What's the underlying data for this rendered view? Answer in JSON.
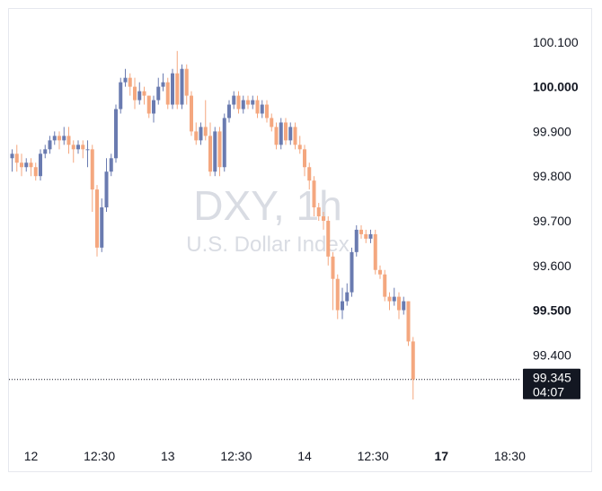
{
  "chart_data": {
    "type": "candlestick",
    "symbol": "DXY",
    "interval": "1h",
    "watermark": {
      "title": "DXY, 1h",
      "subtitle": "U.S. Dollar Index"
    },
    "ylim": [
      99.25,
      100.17
    ],
    "y_ticks": [
      {
        "label": "100.100",
        "value": 100.1,
        "bold": false
      },
      {
        "label": "100.000",
        "value": 100.0,
        "bold": true
      },
      {
        "label": "99.900",
        "value": 99.9,
        "bold": false
      },
      {
        "label": "99.800",
        "value": 99.8,
        "bold": false
      },
      {
        "label": "99.700",
        "value": 99.7,
        "bold": false
      },
      {
        "label": "99.600",
        "value": 99.6,
        "bold": false
      },
      {
        "label": "99.500",
        "value": 99.5,
        "bold": true
      },
      {
        "label": "99.400",
        "value": 99.4,
        "bold": false
      }
    ],
    "x_ticks": [
      {
        "label": "12",
        "bar": 4,
        "bold": false
      },
      {
        "label": "12:30",
        "bar": 18.5,
        "bold": false
      },
      {
        "label": "13",
        "bar": 33,
        "bold": false
      },
      {
        "label": "12:30",
        "bar": 47.5,
        "bold": false
      },
      {
        "label": "14",
        "bar": 62,
        "bold": false
      },
      {
        "label": "12:30",
        "bar": 76.5,
        "bold": false
      },
      {
        "label": "17",
        "bar": 91,
        "bold": true
      },
      {
        "label": "18:30",
        "bar": 105.5,
        "bold": false
      }
    ],
    "last_price": {
      "value": 99.345,
      "label": "99.345",
      "countdown": "04:07"
    },
    "colors": {
      "up": "#6a7bb0",
      "down": "#f4a77f",
      "tag_bg": "#131722",
      "tag_text": "#ffffff",
      "axis_text": "#131722",
      "grid": "none"
    },
    "grid": false,
    "candles": [
      [
        99.84,
        99.85,
        99.86,
        99.81
      ],
      [
        99.85,
        99.83,
        99.87,
        99.81
      ],
      [
        99.83,
        99.82,
        99.85,
        99.8
      ],
      [
        99.82,
        99.83,
        99.84,
        99.81
      ],
      [
        99.83,
        99.82,
        99.84,
        99.8
      ],
      [
        99.82,
        99.8,
        99.83,
        99.79
      ],
      [
        99.8,
        99.85,
        99.86,
        99.79
      ],
      [
        99.85,
        99.86,
        99.87,
        99.84
      ],
      [
        99.86,
        99.88,
        99.89,
        99.85
      ],
      [
        99.88,
        99.89,
        99.9,
        99.87
      ],
      [
        99.89,
        99.88,
        99.9,
        99.86
      ],
      [
        99.88,
        99.89,
        99.91,
        99.87
      ],
      [
        99.89,
        99.87,
        99.91,
        99.85
      ],
      [
        99.87,
        99.86,
        99.88,
        99.83
      ],
      [
        99.86,
        99.87,
        99.88,
        99.85
      ],
      [
        99.87,
        99.86,
        99.88,
        99.84
      ],
      [
        99.86,
        99.86,
        99.88,
        99.82
      ],
      [
        99.86,
        99.77,
        99.87,
        99.72
      ],
      [
        99.77,
        99.64,
        99.78,
        99.62
      ],
      [
        99.64,
        99.73,
        99.75,
        99.63
      ],
      [
        99.73,
        99.81,
        99.84,
        99.72
      ],
      [
        99.81,
        99.84,
        99.85,
        99.8
      ],
      [
        99.84,
        99.95,
        99.96,
        99.83
      ],
      [
        99.95,
        100.01,
        100.02,
        99.94
      ],
      [
        100.01,
        100.02,
        100.04,
        100.0
      ],
      [
        100.02,
        100.0,
        100.03,
        99.98
      ],
      [
        100.0,
        99.97,
        100.02,
        99.95
      ],
      [
        99.97,
        99.99,
        100.01,
        99.96
      ],
      [
        99.99,
        99.98,
        100.0,
        99.96
      ],
      [
        99.98,
        99.94,
        99.98,
        99.93
      ],
      [
        99.94,
        99.97,
        99.98,
        99.92
      ],
      [
        99.97,
        100.0,
        100.02,
        99.96
      ],
      [
        100.0,
        100.01,
        100.03,
        99.99
      ],
      [
        100.01,
        99.96,
        100.02,
        99.95
      ],
      [
        99.96,
        100.03,
        100.04,
        99.95
      ],
      [
        100.03,
        99.96,
        100.08,
        99.95
      ],
      [
        99.96,
        100.04,
        100.05,
        99.95
      ],
      [
        100.04,
        99.98,
        100.05,
        99.96
      ],
      [
        99.98,
        99.9,
        99.99,
        99.89
      ],
      [
        99.9,
        99.88,
        99.92,
        99.87
      ],
      [
        99.88,
        99.91,
        99.92,
        99.87
      ],
      [
        99.91,
        99.89,
        99.97,
        99.88
      ],
      [
        99.89,
        99.81,
        99.92,
        99.8
      ],
      [
        99.81,
        99.9,
        99.91,
        99.8
      ],
      [
        99.9,
        99.82,
        99.91,
        99.8
      ],
      [
        99.82,
        99.93,
        99.94,
        99.81
      ],
      [
        99.93,
        99.96,
        99.97,
        99.92
      ],
      [
        99.96,
        99.98,
        99.99,
        99.95
      ],
      [
        99.98,
        99.95,
        99.99,
        99.94
      ],
      [
        99.95,
        99.97,
        99.98,
        99.94
      ],
      [
        99.97,
        99.96,
        99.98,
        99.95
      ],
      [
        99.96,
        99.97,
        99.98,
        99.95
      ],
      [
        99.97,
        99.94,
        99.98,
        99.93
      ],
      [
        99.94,
        99.96,
        99.97,
        99.93
      ],
      [
        99.96,
        99.93,
        99.97,
        99.92
      ],
      [
        99.93,
        99.91,
        99.94,
        99.9
      ],
      [
        99.91,
        99.87,
        99.92,
        99.86
      ],
      [
        99.87,
        99.92,
        99.93,
        99.86
      ],
      [
        99.92,
        99.88,
        99.93,
        99.87
      ],
      [
        99.88,
        99.91,
        99.92,
        99.87
      ],
      [
        99.91,
        99.87,
        99.92,
        99.86
      ],
      [
        99.87,
        99.86,
        99.89,
        99.85
      ],
      [
        99.86,
        99.82,
        99.87,
        99.8
      ],
      [
        99.82,
        99.79,
        99.83,
        99.77
      ],
      [
        99.79,
        99.73,
        99.8,
        99.71
      ],
      [
        99.73,
        99.71,
        99.74,
        99.7
      ],
      [
        99.71,
        99.7,
        99.72,
        99.68
      ],
      [
        99.7,
        99.62,
        99.71,
        99.6
      ],
      [
        99.62,
        99.57,
        99.63,
        99.5
      ],
      [
        99.57,
        99.5,
        99.58,
        99.48
      ],
      [
        99.5,
        99.52,
        99.55,
        99.48
      ],
      [
        99.52,
        99.54,
        99.56,
        99.51
      ],
      [
        99.54,
        99.63,
        99.64,
        99.53
      ],
      [
        99.63,
        99.68,
        99.69,
        99.62
      ],
      [
        99.68,
        99.67,
        99.69,
        99.66
      ],
      [
        99.67,
        99.66,
        99.68,
        99.65
      ],
      [
        99.66,
        99.67,
        99.68,
        99.65
      ],
      [
        99.67,
        99.59,
        99.68,
        99.58
      ],
      [
        99.59,
        99.58,
        99.6,
        99.57
      ],
      [
        99.58,
        99.53,
        99.59,
        99.52
      ],
      [
        99.53,
        99.52,
        99.54,
        99.5
      ],
      [
        99.52,
        99.53,
        99.55,
        99.51
      ],
      [
        99.53,
        99.5,
        99.54,
        99.48
      ],
      [
        99.5,
        99.52,
        99.53,
        99.49
      ],
      [
        99.52,
        99.43,
        99.52,
        99.42
      ],
      [
        99.43,
        99.345,
        99.44,
        99.3
      ]
    ]
  }
}
